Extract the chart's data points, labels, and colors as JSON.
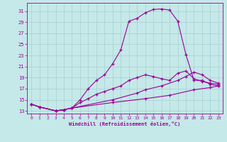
{
  "xlabel": "Windchill (Refroidissement éolien,°C)",
  "background_color": "#c5e8e8",
  "line_color": "#990099",
  "grid_color": "#a8d0d0",
  "ylim": [
    12.5,
    32.5
  ],
  "xlim": [
    -0.5,
    23.5
  ],
  "yticks": [
    13,
    15,
    17,
    19,
    21,
    23,
    25,
    27,
    29,
    31
  ],
  "xticks": [
    0,
    1,
    2,
    3,
    4,
    5,
    6,
    7,
    8,
    9,
    10,
    11,
    12,
    13,
    14,
    15,
    16,
    17,
    18,
    19,
    20,
    21,
    22,
    23
  ],
  "curve1_x": [
    0,
    1,
    3,
    4,
    5,
    6,
    7,
    8,
    9,
    10,
    11,
    12,
    13,
    14,
    15,
    16,
    17,
    18,
    19,
    20,
    21,
    22,
    23
  ],
  "curve1_y": [
    14.2,
    13.7,
    13.0,
    13.2,
    13.5,
    15.0,
    17.0,
    18.5,
    19.5,
    21.5,
    24.0,
    29.2,
    29.7,
    30.7,
    31.3,
    31.4,
    31.2,
    29.2,
    23.2,
    18.5,
    18.5,
    17.8,
    17.5
  ],
  "curve2_x": [
    0,
    1,
    3,
    4,
    5,
    6,
    7,
    8,
    9,
    10,
    11,
    12,
    13,
    14,
    15,
    16,
    17,
    18,
    19,
    20,
    21,
    22,
    23
  ],
  "curve2_y": [
    14.2,
    13.7,
    13.0,
    13.2,
    13.5,
    14.5,
    15.2,
    16.0,
    16.5,
    17.0,
    17.5,
    18.5,
    19.0,
    19.5,
    19.2,
    18.8,
    18.5,
    19.8,
    20.2,
    18.8,
    18.3,
    18.0,
    17.8
  ],
  "curve3_x": [
    0,
    1,
    3,
    4,
    5,
    10,
    13,
    14,
    16,
    18,
    19,
    20,
    21,
    22,
    23
  ],
  "curve3_y": [
    14.2,
    13.7,
    13.0,
    13.2,
    13.5,
    15.0,
    16.2,
    16.8,
    17.5,
    18.5,
    19.2,
    20.0,
    19.5,
    18.5,
    18.0
  ],
  "curve4_x": [
    0,
    1,
    3,
    4,
    5,
    10,
    14,
    17,
    20,
    22,
    23
  ],
  "curve4_y": [
    14.2,
    13.7,
    13.0,
    13.2,
    13.5,
    14.5,
    15.2,
    15.8,
    16.8,
    17.2,
    17.5
  ]
}
